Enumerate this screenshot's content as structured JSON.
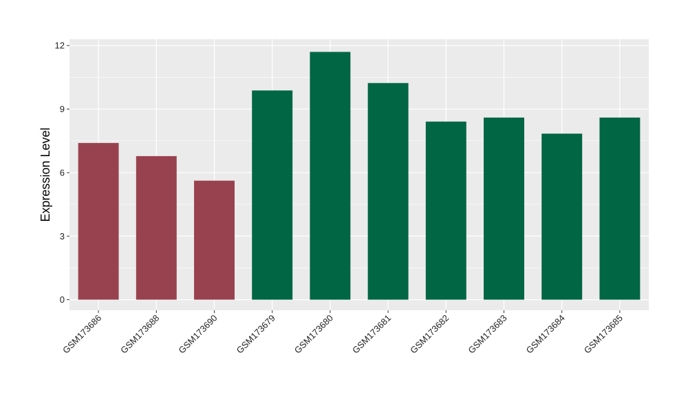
{
  "chart_data": {
    "type": "bar",
    "ylabel": "Expression Level",
    "xlabel": "",
    "ylim": [
      -0.5,
      12.3
    ],
    "yticks": [
      0,
      3,
      6,
      9,
      12
    ],
    "grid": true,
    "legend": "none",
    "categories": [
      "GSM173686",
      "GSM173688",
      "GSM173690",
      "GSM173679",
      "GSM173680",
      "GSM173681",
      "GSM173682",
      "GSM173683",
      "GSM173684",
      "GSM173685"
    ],
    "values": [
      7.4,
      6.78,
      5.62,
      9.88,
      11.7,
      10.23,
      8.41,
      8.6,
      7.84,
      8.6
    ],
    "bar_colors": [
      "#99424f",
      "#99424f",
      "#99424f",
      "#006644",
      "#006644",
      "#006644",
      "#006644",
      "#006644",
      "#006644",
      "#006644"
    ],
    "panel_color": "#ebebeb",
    "grid_color": "#ffffff"
  }
}
